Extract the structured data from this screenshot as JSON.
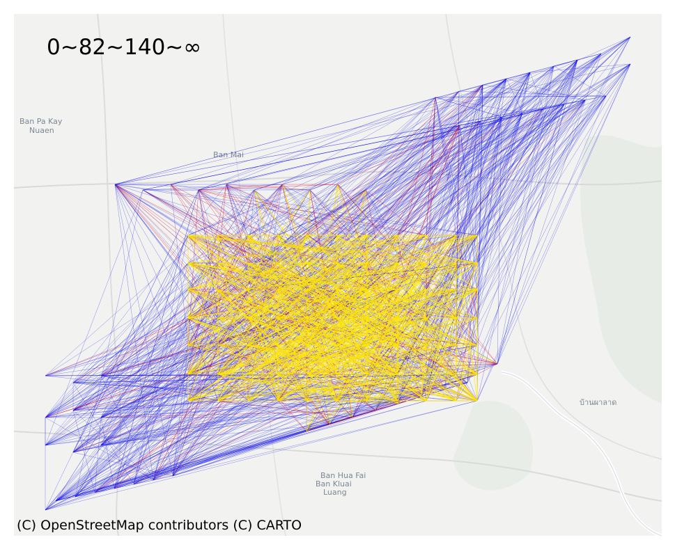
{
  "map": {
    "legend_title": "0~82~140~∞",
    "attribution": "(C) OpenStreetMap contributors (C) CARTO",
    "place_labels": [
      {
        "id": "ban-pa-kay",
        "text": "Ban Pa Kay"
      },
      {
        "id": "nuaen",
        "text": "Nuaen"
      },
      {
        "id": "ban-mai",
        "text": "Ban Mai"
      },
      {
        "id": "ban-hua-fai",
        "text": "Ban Hua Fai"
      },
      {
        "id": "ban-kluai",
        "text": "Ban Kluai"
      },
      {
        "id": "luang",
        "text": "Luang"
      },
      {
        "id": "ban-pha-lat",
        "text": "บ้านผาลาด"
      }
    ],
    "flow_classes": [
      {
        "range": "0~82",
        "color": "#1010e6"
      },
      {
        "range": "82~140",
        "color": "#e0102a"
      },
      {
        "range": "140~∞",
        "color": "#ffe600"
      }
    ],
    "background_color": "#f2f3f1",
    "road_color": "#dcdcdc",
    "river_color": "#ffffff"
  }
}
